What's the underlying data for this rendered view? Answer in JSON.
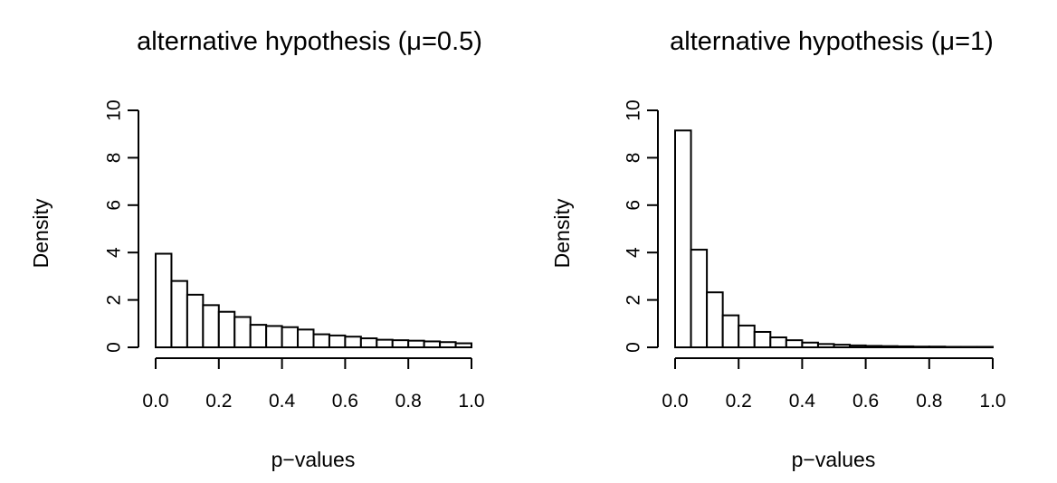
{
  "chart_data": [
    {
      "type": "bar",
      "title": "alternative hypothesis (μ=0.5)",
      "xlabel": "p−values",
      "ylabel": "Density",
      "xlim": [
        0,
        1
      ],
      "ylim": [
        0,
        10
      ],
      "x_ticks": [
        "0.0",
        "0.2",
        "0.4",
        "0.6",
        "0.8",
        "1.0"
      ],
      "y_ticks": [
        "0",
        "2",
        "4",
        "6",
        "8",
        "10"
      ],
      "bin_width": 0.05,
      "values": [
        3.95,
        2.8,
        2.22,
        1.78,
        1.5,
        1.28,
        0.95,
        0.9,
        0.85,
        0.75,
        0.55,
        0.5,
        0.45,
        0.38,
        0.32,
        0.3,
        0.28,
        0.25,
        0.22,
        0.17
      ]
    },
    {
      "type": "bar",
      "title": "alternative hypothesis (μ=1)",
      "xlabel": "p−values",
      "ylabel": "Density",
      "xlim": [
        0,
        1
      ],
      "ylim": [
        0,
        10
      ],
      "x_ticks": [
        "0.0",
        "0.2",
        "0.4",
        "0.6",
        "0.8",
        "1.0"
      ],
      "y_ticks": [
        "0",
        "2",
        "4",
        "6",
        "8",
        "10"
      ],
      "bin_width": 0.05,
      "values": [
        9.15,
        4.12,
        2.32,
        1.35,
        0.92,
        0.65,
        0.42,
        0.3,
        0.2,
        0.14,
        0.11,
        0.08,
        0.06,
        0.05,
        0.04,
        0.03,
        0.03,
        0.02,
        0.02,
        0.02
      ]
    }
  ]
}
